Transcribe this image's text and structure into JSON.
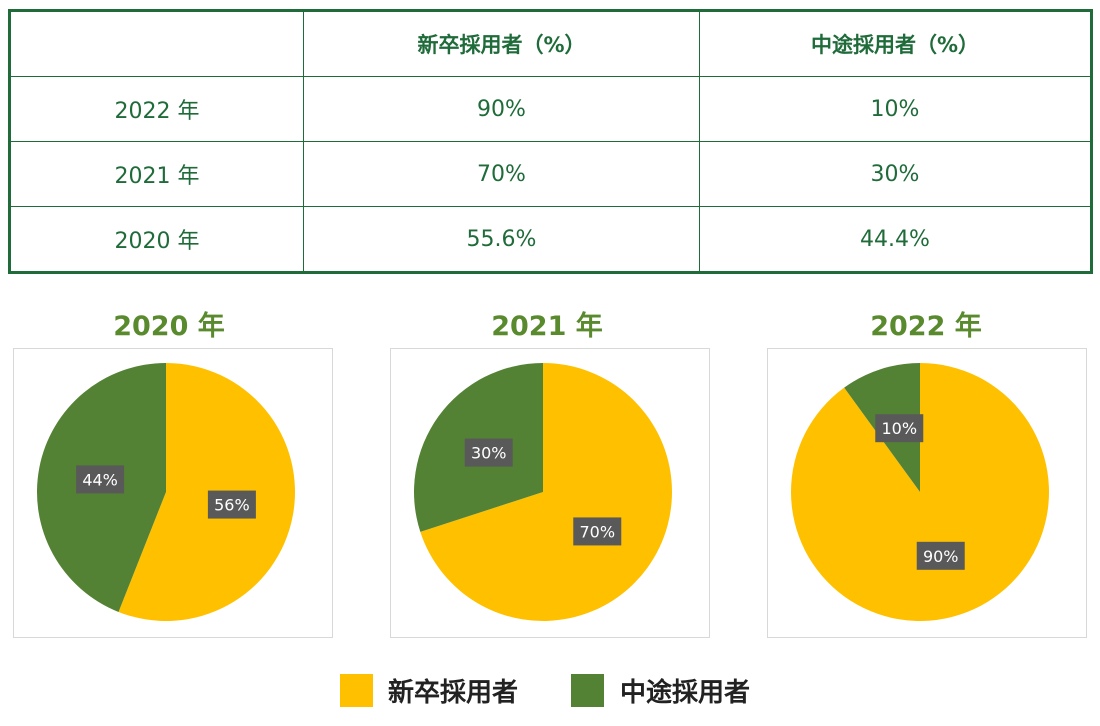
{
  "table": {
    "headers": [
      "",
      "新卒採用者（%）",
      "中途採用者（%）"
    ],
    "rows": [
      [
        "2022 年",
        "90%",
        "10%"
      ],
      [
        "2021 年",
        "70%",
        "30%"
      ],
      [
        "2020 年",
        "55.6%",
        "44.4%"
      ]
    ]
  },
  "colors": {
    "new_grad": "#ffc000",
    "mid_career": "#548235",
    "label_bg": "#595959",
    "table": "#1f6b3a",
    "title": "#5a8a2e"
  },
  "legend": {
    "new_grad": "新卒採用者",
    "mid_career": "中途採用者"
  },
  "chart_data": [
    {
      "type": "pie",
      "title": "2020 年",
      "slices": [
        {
          "name": "新卒採用者",
          "value": 56,
          "label": "56%"
        },
        {
          "name": "中途採用者",
          "value": 44,
          "label": "44%"
        }
      ]
    },
    {
      "type": "pie",
      "title": "2021 年",
      "slices": [
        {
          "name": "新卒採用者",
          "value": 70,
          "label": "70%"
        },
        {
          "name": "中途採用者",
          "value": 30,
          "label": "30%"
        }
      ]
    },
    {
      "type": "pie",
      "title": "2022 年",
      "slices": [
        {
          "name": "新卒採用者",
          "value": 90,
          "label": "90%"
        },
        {
          "name": "中途採用者",
          "value": 10,
          "label": "10%"
        }
      ]
    }
  ]
}
